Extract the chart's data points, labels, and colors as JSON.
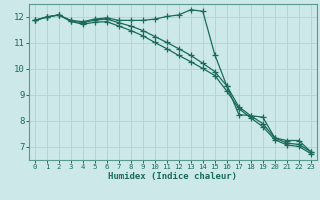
{
  "xlabel": "Humidex (Indice chaleur)",
  "bg_color": "#cce8e8",
  "line_color": "#1a6b5a",
  "grid_color": "#b8d4d4",
  "spine_color": "#5a9a8a",
  "x_values": [
    0,
    1,
    2,
    3,
    4,
    5,
    6,
    7,
    8,
    9,
    10,
    11,
    12,
    13,
    14,
    15,
    16,
    17,
    18,
    19,
    20,
    21,
    22,
    23
  ],
  "line1_y": [
    11.87,
    12.0,
    12.08,
    11.87,
    11.82,
    11.92,
    11.97,
    11.87,
    11.87,
    11.87,
    11.92,
    12.02,
    12.08,
    12.28,
    12.22,
    10.55,
    9.35,
    8.25,
    8.2,
    8.15,
    7.35,
    7.25,
    7.25,
    6.82
  ],
  "line2_y": [
    11.87,
    12.0,
    12.08,
    11.85,
    11.78,
    11.88,
    11.92,
    11.78,
    11.65,
    11.48,
    11.25,
    11.02,
    10.78,
    10.52,
    10.22,
    9.9,
    9.35,
    8.55,
    8.2,
    7.9,
    7.35,
    7.15,
    7.1,
    6.82
  ],
  "line3_y": [
    11.87,
    12.0,
    12.08,
    11.83,
    11.72,
    11.8,
    11.82,
    11.65,
    11.48,
    11.28,
    11.02,
    10.78,
    10.52,
    10.28,
    10.02,
    9.75,
    9.15,
    8.48,
    8.12,
    7.78,
    7.28,
    7.08,
    7.02,
    6.75
  ],
  "xlim": [
    -0.5,
    23.5
  ],
  "ylim": [
    6.5,
    12.5
  ],
  "yticks": [
    7,
    8,
    9,
    10,
    11,
    12
  ],
  "xticks": [
    0,
    1,
    2,
    3,
    4,
    5,
    6,
    7,
    8,
    9,
    10,
    11,
    12,
    13,
    14,
    15,
    16,
    17,
    18,
    19,
    20,
    21,
    22,
    23
  ]
}
